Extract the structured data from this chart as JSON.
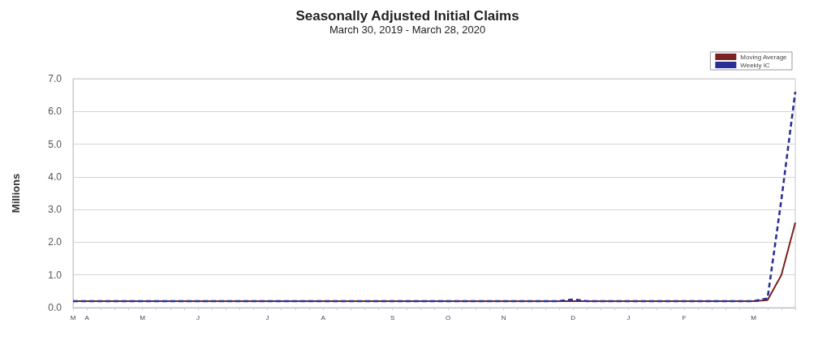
{
  "chart_data": {
    "type": "line",
    "title": "Seasonally Adjusted Initial Claims",
    "subtitle": "March 30, 2019 - March 28, 2020",
    "ylabel": "Millions",
    "categories": [
      "M",
      "A",
      null,
      null,
      null,
      "M",
      null,
      null,
      null,
      "J",
      null,
      null,
      null,
      null,
      "J",
      null,
      null,
      null,
      "A",
      null,
      null,
      null,
      null,
      "S",
      null,
      null,
      null,
      "O",
      null,
      null,
      null,
      "N",
      null,
      null,
      null,
      null,
      "D",
      null,
      null,
      null,
      "J",
      null,
      null,
      null,
      "F",
      null,
      null,
      null,
      null,
      "M",
      null,
      null,
      null
    ],
    "series": [
      {
        "name": "Moving Average",
        "color": "#7a2222",
        "line_style": "solid",
        "values": [
          0.2,
          0.2,
          0.2,
          0.2,
          0.2,
          0.2,
          0.2,
          0.2,
          0.2,
          0.2,
          0.2,
          0.2,
          0.2,
          0.2,
          0.2,
          0.2,
          0.2,
          0.2,
          0.2,
          0.2,
          0.2,
          0.2,
          0.2,
          0.2,
          0.2,
          0.2,
          0.2,
          0.2,
          0.2,
          0.2,
          0.2,
          0.2,
          0.2,
          0.2,
          0.2,
          0.2,
          0.2,
          0.2,
          0.2,
          0.2,
          0.2,
          0.2,
          0.2,
          0.2,
          0.2,
          0.2,
          0.2,
          0.2,
          0.2,
          0.2,
          0.23,
          1.0,
          2.6
        ]
      },
      {
        "name": "Weekly IC",
        "color": "#2a2f96",
        "line_style": "dashed",
        "values": [
          0.2,
          0.2,
          0.2,
          0.2,
          0.2,
          0.2,
          0.2,
          0.2,
          0.2,
          0.2,
          0.2,
          0.2,
          0.2,
          0.2,
          0.2,
          0.2,
          0.2,
          0.2,
          0.2,
          0.2,
          0.2,
          0.2,
          0.2,
          0.2,
          0.2,
          0.2,
          0.2,
          0.2,
          0.2,
          0.2,
          0.2,
          0.2,
          0.2,
          0.2,
          0.2,
          0.2,
          0.25,
          0.2,
          0.2,
          0.2,
          0.2,
          0.2,
          0.2,
          0.2,
          0.2,
          0.2,
          0.2,
          0.2,
          0.2,
          0.2,
          0.28,
          3.31,
          6.6
        ]
      }
    ],
    "ylim": [
      0,
      7
    ],
    "yticks": [
      {
        "value": 0,
        "label": "0.0"
      },
      {
        "value": 1,
        "label": "1.0"
      },
      {
        "value": 2,
        "label": "2.0"
      },
      {
        "value": 3,
        "label": "3.0"
      },
      {
        "value": 4,
        "label": "4.0"
      },
      {
        "value": 5,
        "label": "5.0"
      },
      {
        "value": 6,
        "label": "6.0"
      },
      {
        "value": 7,
        "label": "7.0"
      }
    ],
    "grid": "y",
    "legend": "top right",
    "marker": "none"
  }
}
